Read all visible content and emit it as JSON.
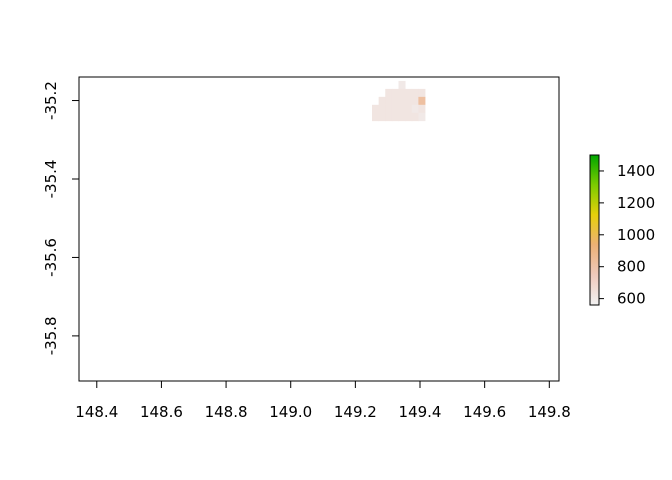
{
  "chart_data": {
    "type": "heatmap",
    "title": "",
    "xlabel": "",
    "ylabel": "",
    "xlim": [
      148.345,
      149.83
    ],
    "ylim": [
      -35.915,
      -35.14
    ],
    "x_ticks": [
      148.4,
      148.6,
      148.8,
      149.0,
      149.2,
      149.4,
      149.6,
      149.8
    ],
    "x_tick_labels": [
      "148.4",
      "148.6",
      "148.8",
      "149.0",
      "149.2",
      "149.4",
      "149.6",
      "149.8"
    ],
    "y_ticks": [
      -35.2,
      -35.4,
      -35.6,
      -35.8
    ],
    "y_tick_labels": [
      "-35.2",
      "-35.4",
      "-35.6",
      "-35.8"
    ],
    "grid": false,
    "legend": {
      "placement": "right",
      "min": 560,
      "max": 1500,
      "ticks": [
        600,
        800,
        1000,
        1200,
        1400
      ],
      "tick_labels": [
        "600",
        "800",
        "1000",
        "1200",
        "1400"
      ],
      "colors": [
        "#F2F2F2",
        "#EFC9BC",
        "#ECB176",
        "#E6D00B",
        "#7CCB00",
        "#00A600"
      ]
    },
    "raster": {
      "x0": 148.78,
      "y0": -35.15,
      "dx": 0.0205,
      "dy": 0.0203,
      "rows": [
        [
          null,
          null,
          null,
          null,
          null,
          null,
          null,
          null,
          null,
          null,
          null,
          null,
          null,
          null,
          null,
          null,
          null,
          null,
          null,
          null,
          null,
          null,
          null,
          null,
          null,
          null,
          null,
          600,
          null,
          null,
          null,
          null,
          null,
          null,
          null,
          null,
          null,
          null,
          null,
          null,
          null,
          null,
          null,
          null,
          null
        ],
        [
          null,
          null,
          null,
          null,
          null,
          null,
          null,
          null,
          null,
          null,
          null,
          null,
          null,
          null,
          null,
          null,
          null,
          null,
          null,
          null,
          null,
          null,
          null,
          null,
          null,
          620,
          620,
          620,
          620,
          620,
          620,
          null,
          null,
          null,
          null,
          null,
          null,
          null,
          null,
          null,
          null,
          null,
          null,
          null,
          null
        ],
        [
          null,
          null,
          null,
          null,
          null,
          null,
          null,
          null,
          null,
          null,
          null,
          null,
          null,
          null,
          null,
          null,
          null,
          null,
          null,
          null,
          null,
          null,
          null,
          null,
          620,
          620,
          620,
          620,
          620,
          620,
          820,
          null,
          null,
          null,
          null,
          null,
          null,
          null,
          null,
          null,
          null,
          null,
          null,
          null,
          null
        ],
        [
          null,
          null,
          null,
          null,
          null,
          null,
          null,
          null,
          null,
          null,
          null,
          null,
          null,
          null,
          null,
          null,
          null,
          null,
          null,
          null,
          null,
          null,
          null,
          620,
          620,
          620,
          620,
          620,
          620,
          600,
          620,
          null,
          null,
          null,
          null,
          null,
          null,
          null,
          null,
          null,
          null,
          null,
          null,
          null,
          null
        ],
        [
          null,
          null,
          null,
          null,
          null,
          null,
          null,
          null,
          null,
          null,
          null,
          null,
          null,
          null,
          null,
          null,
          null,
          null,
          null,
          null,
          null,
          null,
          null,
          620,
          620,
          620,
          620,
          620,
          620,
          620,
          600,
          null,
          null,
          null,
          null,
          null,
          null,
          null,
          null,
          null,
          null,
          null,
          null,
          null,
          null
        ],
        [
          null,
          null,
          null,
          null,
          null,
          null,
          null,
          null,
          null,
          null,
          null,
          null,
          null,
          null,
          null,
          null,
          null,
          null,
          null,
          null,
          null,
          null,
          null,
          null,
          null,
          null,
          null,
          null,
          null,
          null,
          null,
          null,
          null,
          null,
          null,
          null,
          null,
          null,
          null,
          null,
          null,
          null,
          null,
          null,
          null
        ]
      ]
    }
  }
}
